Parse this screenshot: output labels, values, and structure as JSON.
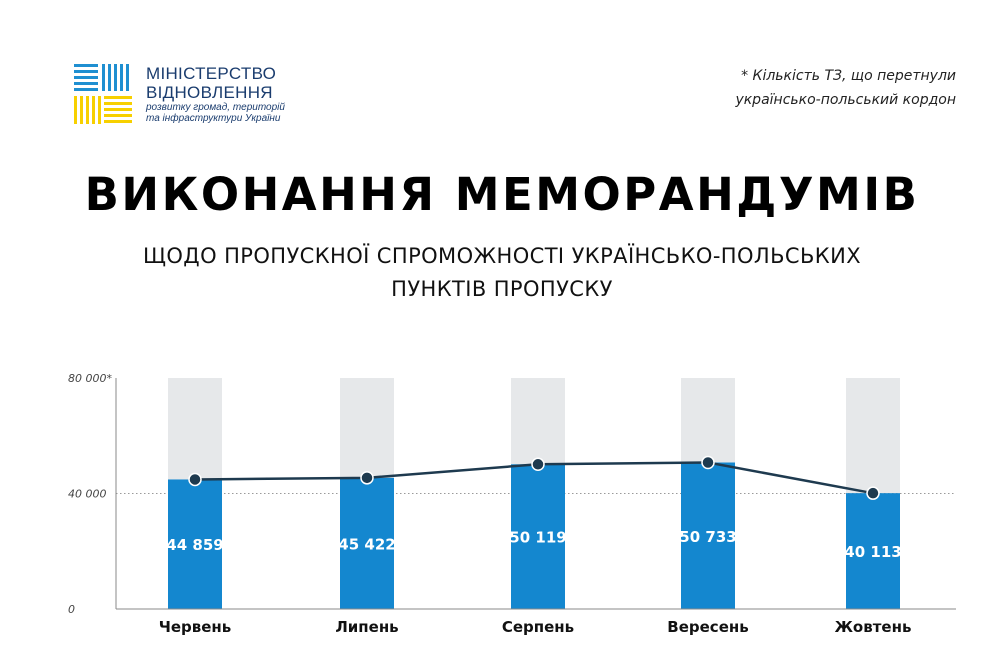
{
  "logo": {
    "line1": "МІНІСТЕРСТВО",
    "line2": "ВІДНОВЛЕННЯ",
    "line3": "розвитку громад, територій",
    "line4": "та інфраструктури України",
    "colors": {
      "blue": "#1f8fd1",
      "yellow": "#f7d000"
    }
  },
  "note": {
    "line1": "* Кількість ТЗ, що перетнули",
    "line2": "українсько-польський кордон"
  },
  "title": "ВИКОНАННЯ МЕМОРАНДУМІВ",
  "subtitle": {
    "line1": "ЩОДО ПРОПУСКНОЇ СПРОМОЖНОСТІ УКРАЇНСЬКО-ПОЛЬСЬКИХ",
    "line2": "ПУНКТІВ ПРОПУСКУ"
  },
  "chart_data": {
    "type": "bar",
    "categories": [
      "Червень",
      "Липень",
      "Серпень",
      "Вересень",
      "Жовтень"
    ],
    "values": [
      44859,
      45422,
      50119,
      50733,
      40113
    ],
    "value_labels": [
      "44 859",
      "45 422",
      "50 119",
      "50 733",
      "40 113"
    ],
    "ylim": [
      0,
      80000
    ],
    "yticks": [
      {
        "value": 0,
        "label": "0"
      },
      {
        "value": 40000,
        "label": "40 000"
      },
      {
        "value": 80000,
        "label": "80 000*"
      }
    ],
    "overlay_line": true,
    "background_bar_value": 80000,
    "dotted_gridline_at": 40000,
    "colors": {
      "bar": "#1487cf",
      "background_bar": "#e6e8ea",
      "line": "#1e3a4f",
      "marker": "#1e3a4f",
      "gridline": "#9a9a9a"
    }
  }
}
